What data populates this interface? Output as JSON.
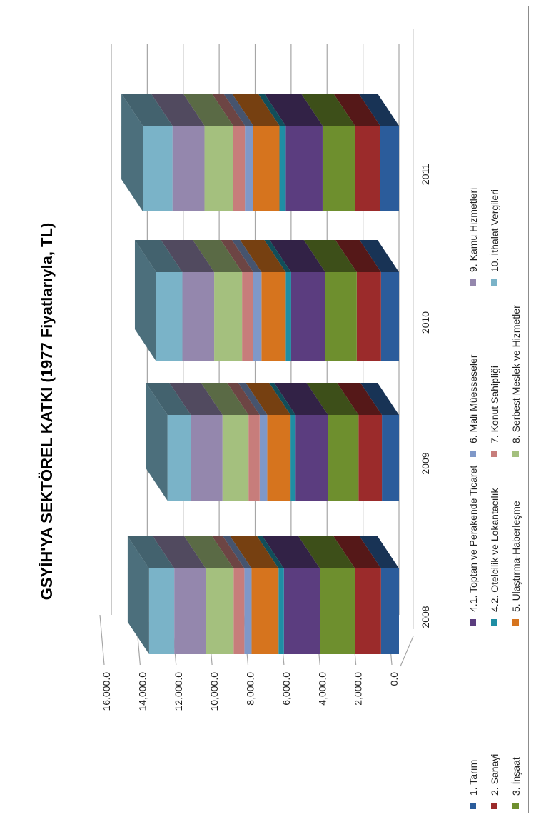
{
  "chart_data": {
    "type": "bar",
    "stacked": true,
    "three_d": true,
    "orientation": "rotated 90° counter-clockwise",
    "title": "GSYİH'YA SEKTÖREL KATKI  (1977 Fiyatlarıyla, TL)",
    "categories": [
      "2008",
      "2009",
      "2010",
      "2011"
    ],
    "ylim": [
      0,
      16000
    ],
    "yticks": [
      "0.0",
      "2,000.0",
      "4,000.0",
      "6,000.0",
      "8,000.0",
      "10,000.0",
      "12,000.0",
      "14,000.0",
      "16,000.0"
    ],
    "grid": true,
    "legend_position": "bottom",
    "series": [
      {
        "name": "1. Tarım",
        "color": "#2b5c9b",
        "values": [
          1000,
          950,
          1000,
          1050
        ]
      },
      {
        "name": "2. Sanayi",
        "color": "#9b2b2b",
        "values": [
          1450,
          1300,
          1350,
          1400
        ]
      },
      {
        "name": "3. İnşaat",
        "color": "#6e8f2e",
        "values": [
          1950,
          1700,
          1750,
          1800
        ]
      },
      {
        "name": "4.1. Toptan ve Perakende Ticaret",
        "color": "#5b3d7f",
        "values": [
          2000,
          1800,
          1900,
          2050
        ]
      },
      {
        "name": "4.2. Otelcilik ve Lokantacılık",
        "color": "#1f8ea4",
        "values": [
          300,
          280,
          300,
          350
        ]
      },
      {
        "name": "5. Ulaştırma-Haberleşme",
        "color": "#d6741e",
        "values": [
          1500,
          1300,
          1350,
          1450
        ]
      },
      {
        "name": "6. Mali Müesseseler",
        "color": "#7f98c8",
        "values": [
          400,
          420,
          450,
          470
        ]
      },
      {
        "name": "7. Konut Sahipliği",
        "color": "#c77d7b",
        "values": [
          600,
          620,
          630,
          650
        ]
      },
      {
        "name": "8. Serbest Meslek ve Hizmetler",
        "color": "#a4c07e",
        "values": [
          1550,
          1450,
          1550,
          1600
        ]
      },
      {
        "name": "9. Kamu Hizmetleri",
        "color": "#9487ad",
        "values": [
          1750,
          1760,
          1770,
          1780
        ]
      },
      {
        "name": "10. İthalat Vergileri",
        "color": "#7ab3c8",
        "values": [
          1400,
          1300,
          1450,
          1650
        ]
      }
    ]
  }
}
